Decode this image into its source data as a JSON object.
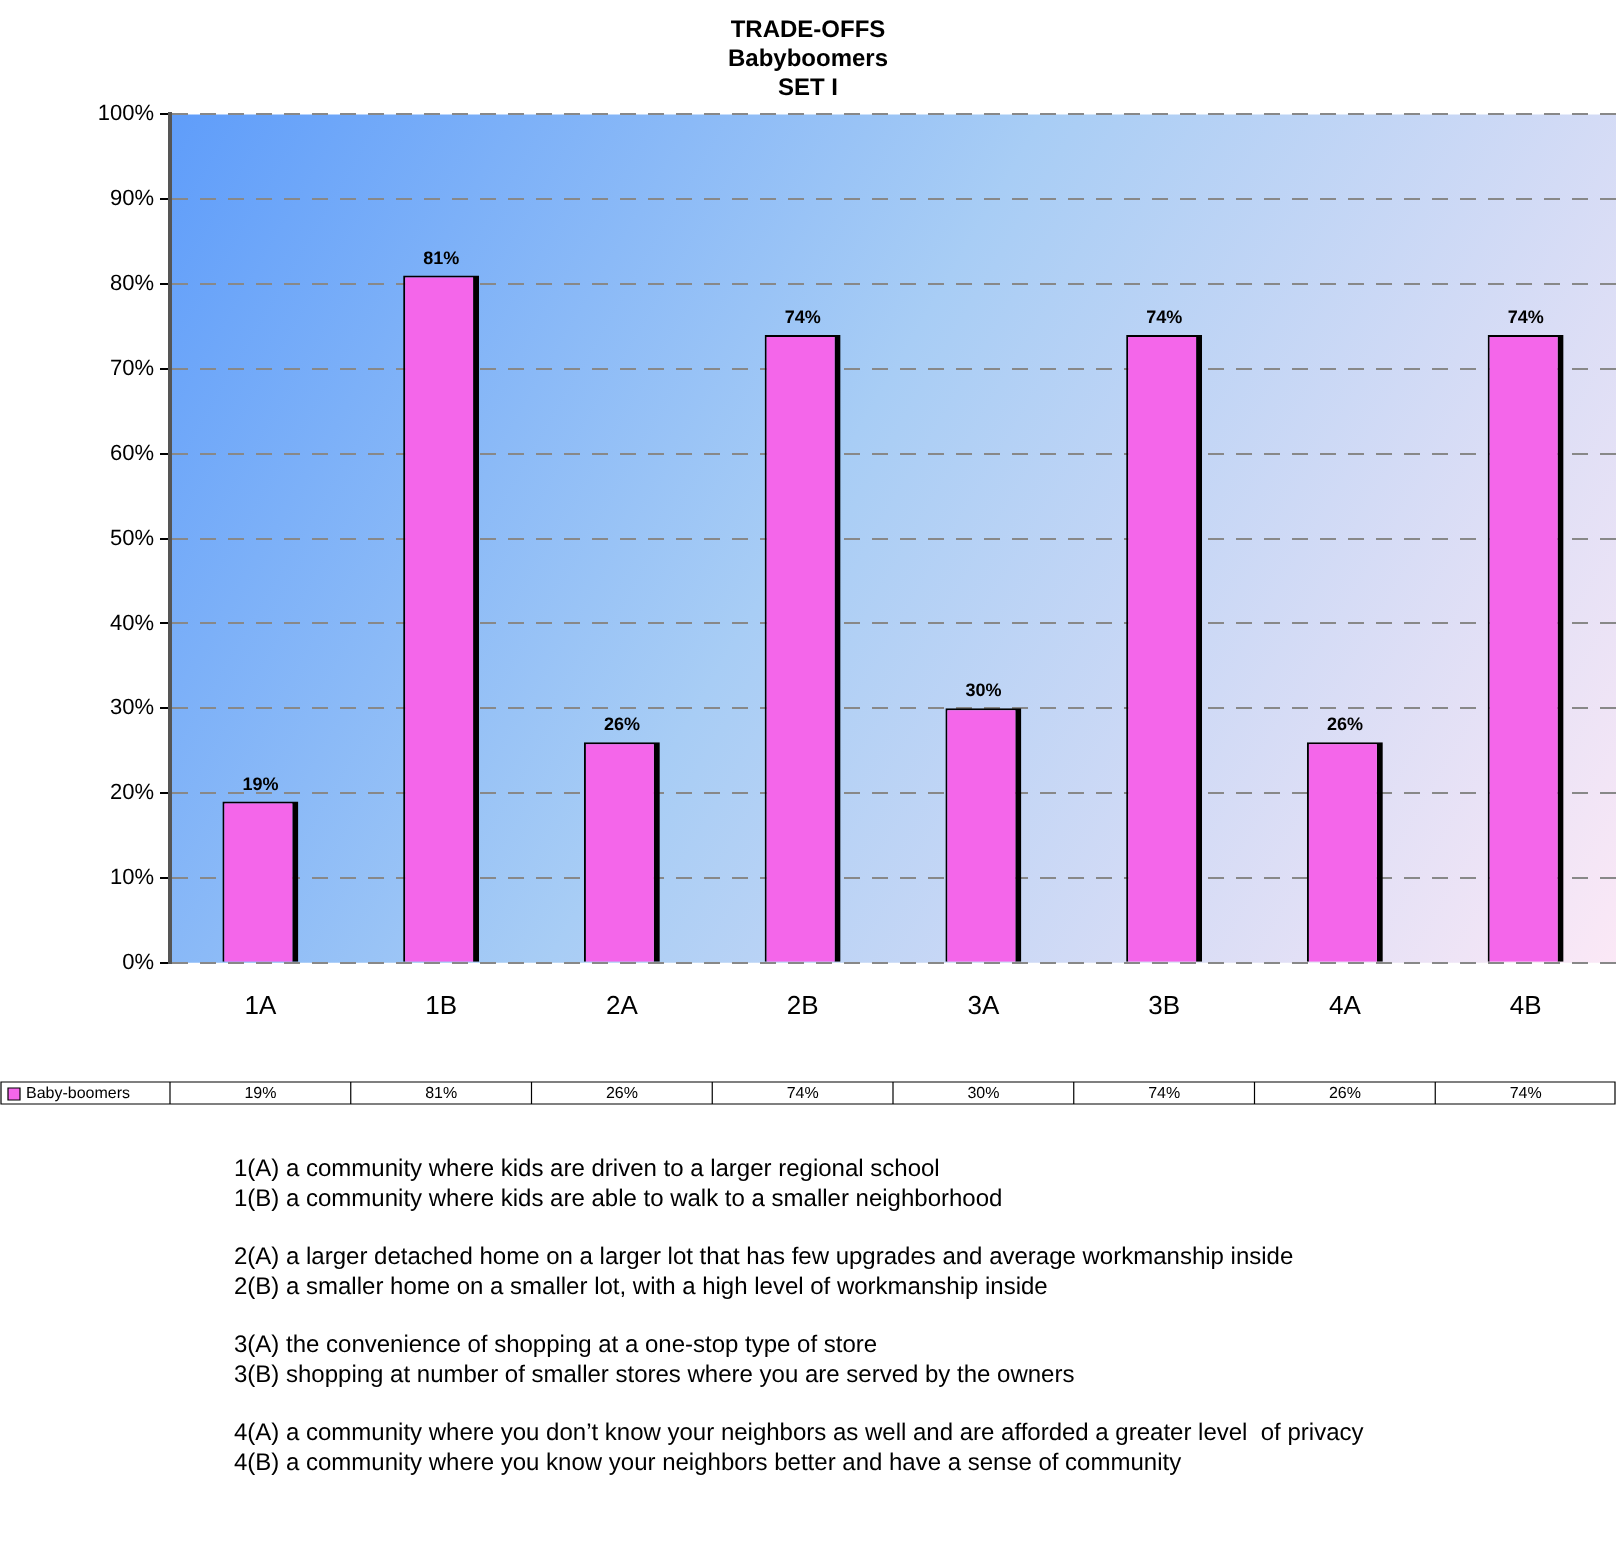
{
  "chart_data": {
    "type": "bar",
    "title": "TRADE-OFFS",
    "subtitle": "Babyboomers\nSET I",
    "categories": [
      "1A",
      "1B",
      "2A",
      "2B",
      "3A",
      "3B",
      "4A",
      "4B"
    ],
    "series": [
      {
        "name": "Baby-boomers",
        "color": "#f466ea",
        "values": [
          19,
          81,
          26,
          74,
          30,
          74,
          26,
          74
        ],
        "value_labels": [
          "19%",
          "81%",
          "26%",
          "74%",
          "30%",
          "74%",
          "26%",
          "74%"
        ]
      }
    ],
    "ylim": [
      0,
      100
    ],
    "yticks": [
      {
        "value": 0,
        "label": "0%"
      },
      {
        "value": 10,
        "label": "10%"
      },
      {
        "value": 20,
        "label": "20%"
      },
      {
        "value": 30,
        "label": "30%"
      },
      {
        "value": 40,
        "label": "40%"
      },
      {
        "value": 50,
        "label": "50%"
      },
      {
        "value": 60,
        "label": "60%"
      },
      {
        "value": 70,
        "label": "70%"
      },
      {
        "value": 80,
        "label": "80%"
      },
      {
        "value": 90,
        "label": "90%"
      },
      {
        "value": 100,
        "label": "100%"
      }
    ],
    "grid": "y",
    "legend": "bottom",
    "annotations": [
      "1(A) a community where kids are driven to a larger regional school",
      "1(B) a community where kids are able to walk to a smaller neighborhood",
      "2(A) a larger detached home on a larger lot that has few upgrades and average workmanship inside",
      "2(B) a smaller home on a smaller lot, with a high level of workmanship inside",
      "3(A) the convenience of shopping at a one-stop type of store",
      "3(B) shopping at number of smaller stores where you are served by the owners",
      "4(A) a community where you don’t know your neighbors as well and are afforded a greater level  of privacy",
      "4(B) a community where you know your neighbors better and have a sense of community"
    ]
  }
}
